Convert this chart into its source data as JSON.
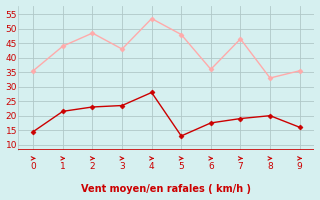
{
  "x": [
    0,
    1,
    2,
    3,
    4,
    5,
    6,
    7,
    8,
    9
  ],
  "y_mean": [
    14.5,
    21.5,
    23,
    23.5,
    28,
    13,
    17.5,
    19,
    20,
    16
  ],
  "y_gust": [
    35.5,
    44,
    48.5,
    43,
    53.5,
    48,
    36,
    46.5,
    33,
    35.5
  ],
  "line_color_mean": "#cc0000",
  "line_color_gust": "#ffaaaa",
  "bg_color": "#d6f0f0",
  "grid_color": "#b0c8c8",
  "xlabel": "Vent moyen/en rafales ( km/h )",
  "xlabel_color": "#cc0000",
  "tick_color": "#cc0000",
  "arrow_color": "#cc0000",
  "ylim": [
    8,
    58
  ],
  "xlim": [
    -0.5,
    9.5
  ],
  "yticks": [
    10,
    15,
    20,
    25,
    30,
    35,
    40,
    45,
    50,
    55
  ],
  "xticks": [
    0,
    1,
    2,
    3,
    4,
    5,
    6,
    7,
    8,
    9
  ]
}
